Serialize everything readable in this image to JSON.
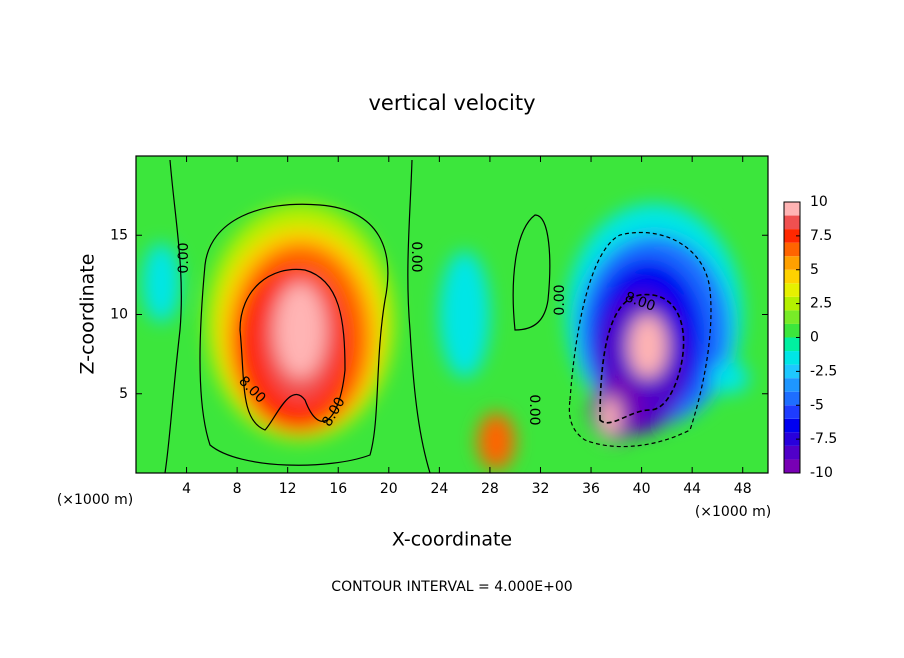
{
  "chart_data": {
    "type": "contour",
    "title": "vertical velocity",
    "xlabel": "X-coordinate",
    "ylabel": "Z-coordinate",
    "x_unit_label": "(×1000 m)",
    "y_unit_label": "(×1000 m)",
    "footer": "CONTOUR INTERVAL = 4.000E+00",
    "xlim": [
      0,
      50
    ],
    "xticks": [
      4,
      8,
      12,
      16,
      20,
      24,
      28,
      32,
      36,
      40,
      44,
      48
    ],
    "ylim": [
      0,
      20
    ],
    "yticks": [
      5,
      10,
      15
    ],
    "contour_labels": [
      "0.00",
      "0.00",
      "0.00",
      "0.00",
      "8.00",
      "8.00",
      "8.00"
    ],
    "colorbar": {
      "clim": [
        -10,
        10
      ],
      "ticks": [
        10,
        7.5,
        5,
        2.5,
        0,
        -2.5,
        -5,
        -7.5,
        -10
      ],
      "colors": [
        "#7800b4",
        "#5000c8",
        "#2800dc",
        "#0000f0",
        "#1e3cff",
        "#1e6eff",
        "#1e96ff",
        "#1ec8ff",
        "#00e6e6",
        "#00f0a0",
        "#3ce63c",
        "#78eb28",
        "#b4f000",
        "#e6f000",
        "#ffd200",
        "#ffa000",
        "#ff6400",
        "#ff2800",
        "#f05050",
        "#ffb4b4"
      ]
    }
  }
}
